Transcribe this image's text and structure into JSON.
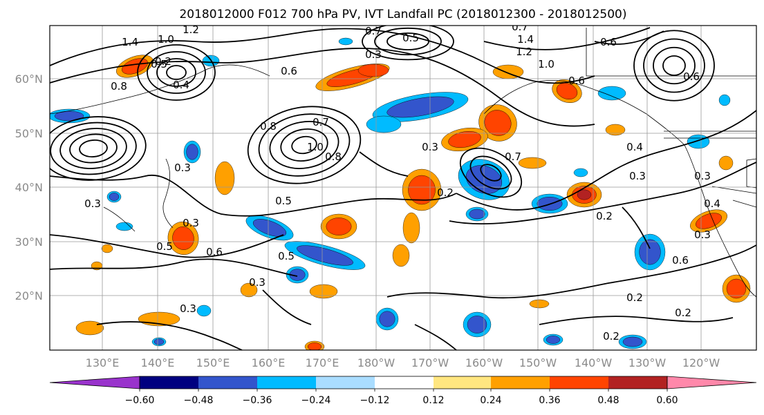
{
  "title": "2018012000 F012 700 hPa PV, IVT Landfall PC (2018012300 - 2018012500)",
  "lat_ticks": [
    "60°N",
    "50°N",
    "40°N",
    "30°N",
    "20°N"
  ],
  "lon_ticks": [
    "130°E",
    "140°E",
    "150°E",
    "160°E",
    "170°E",
    "180°W",
    "170°W",
    "160°W",
    "150°W",
    "140°W",
    "130°W",
    "120°W"
  ],
  "colorbar": {
    "tick_labels": [
      "−0.60",
      "−0.48",
      "−0.36",
      "−0.24",
      "−0.12",
      "0.12",
      "0.24",
      "0.36",
      "0.48",
      "0.60"
    ],
    "colors": [
      "#9933cc",
      "#000080",
      "#3355cc",
      "#00bbff",
      "#aaddff",
      "#ffffff",
      "#ffe680",
      "#ffa000",
      "#ff4400",
      "#b22222",
      "#ff88aa"
    ]
  },
  "contour_labels": [
    "1.4",
    "1.0",
    "1.2",
    "0.7",
    "0.5",
    "0.3",
    "0.8",
    "0.4",
    "0.6",
    "0.2",
    "1.4",
    "1.2",
    "1.0",
    "0.7",
    "0.6",
    "0.6",
    "0.5",
    "0.8",
    "0.6",
    "1.0",
    "0.8",
    "0.7",
    "0.3",
    "0.7",
    "0.3",
    "0.4",
    "0.3",
    "0.5",
    "0.2",
    "0.3",
    "0.2",
    "0.5",
    "0.6",
    "0.3",
    "0.5",
    "0.3",
    "0.3",
    "0.2",
    "0.6",
    "0.3",
    "0.2",
    "0.2",
    "0.4",
    "0.3"
  ]
}
